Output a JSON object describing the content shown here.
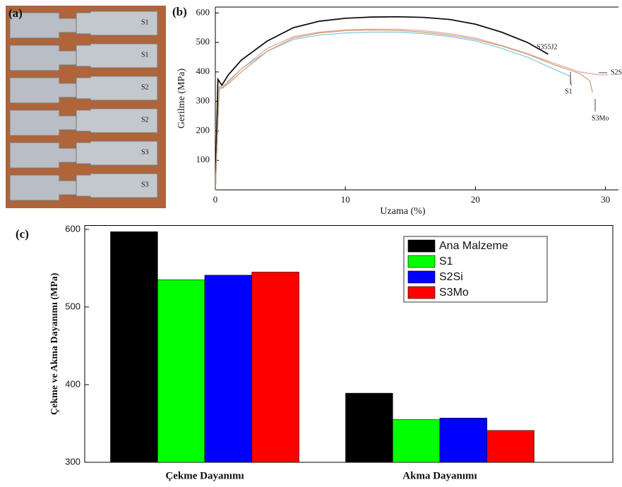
{
  "photo": {
    "label": "(a)",
    "specimen_labels": [
      "S1",
      "S1",
      "S2",
      "S2",
      "S3",
      "S3"
    ]
  },
  "chart_data": [
    {
      "type": "line",
      "panel_label": "(b)",
      "xlabel": "Uzama (%)",
      "ylabel": "Gerilme (MPa)",
      "xlim": [
        0,
        31
      ],
      "xticks": [
        0,
        10,
        20,
        30
      ],
      "ylim": [
        0,
        620
      ],
      "yticks": [
        100,
        200,
        300,
        400,
        500,
        600
      ],
      "series": [
        {
          "name": "S355J2",
          "color": "#111111",
          "x": [
            0,
            0.2,
            0.5,
            1,
            2,
            4,
            6,
            8,
            10,
            12,
            14,
            16,
            18,
            20,
            22,
            24,
            25.6
          ],
          "values": [
            0,
            375,
            355,
            390,
            440,
            505,
            550,
            572,
            582,
            586,
            587,
            585,
            578,
            562,
            535,
            500,
            460
          ]
        },
        {
          "name": "S1",
          "color": "#7ec8e3",
          "x": [
            0,
            0.3,
            0.6,
            1,
            2,
            4,
            6,
            8,
            10,
            12,
            14,
            16,
            18,
            20,
            22,
            24,
            26,
            27.3,
            27.4
          ],
          "values": [
            0,
            350,
            345,
            370,
            410,
            470,
            510,
            525,
            532,
            535,
            535,
            530,
            520,
            505,
            480,
            450,
            410,
            385,
            350
          ]
        },
        {
          "name": "S2S",
          "color": "#e8a0a0",
          "x": [
            0,
            0.3,
            1,
            2,
            4,
            6,
            8,
            10,
            12,
            14,
            16,
            18,
            20,
            22,
            24,
            26,
            28,
            29.5,
            30.2
          ],
          "values": [
            0,
            345,
            365,
            410,
            480,
            520,
            535,
            543,
            545,
            545,
            540,
            530,
            515,
            490,
            462,
            430,
            400,
            390,
            390
          ]
        },
        {
          "name": "S3Mo",
          "color": "#c8a070",
          "x": [
            0,
            0.3,
            1,
            2,
            4,
            6,
            8,
            10,
            12,
            14,
            16,
            18,
            20,
            22,
            24,
            26,
            28,
            28.8,
            29
          ],
          "values": [
            0,
            340,
            360,
            400,
            470,
            515,
            532,
            540,
            542,
            541,
            535,
            525,
            510,
            488,
            460,
            425,
            395,
            370,
            330
          ]
        }
      ]
    },
    {
      "type": "bar",
      "panel_label": "(c)",
      "ylabel": "Çekme ve Akma Dayanımı (MPa)",
      "categories": [
        "Çekme Dayanımı",
        "Akma Dayanımı"
      ],
      "ylim": [
        300,
        605
      ],
      "yticks": [
        300,
        400,
        500,
        600
      ],
      "series": [
        {
          "name": "Ana Malzeme",
          "color": "#000000",
          "values": [
            597,
            389
          ]
        },
        {
          "name": "S1",
          "color": "#00ff00",
          "values": [
            535,
            355
          ]
        },
        {
          "name": "S2Si",
          "color": "#0000ff",
          "values": [
            541,
            357
          ]
        },
        {
          "name": "S3Mo",
          "color": "#ff0000",
          "values": [
            545,
            341
          ]
        }
      ]
    }
  ]
}
